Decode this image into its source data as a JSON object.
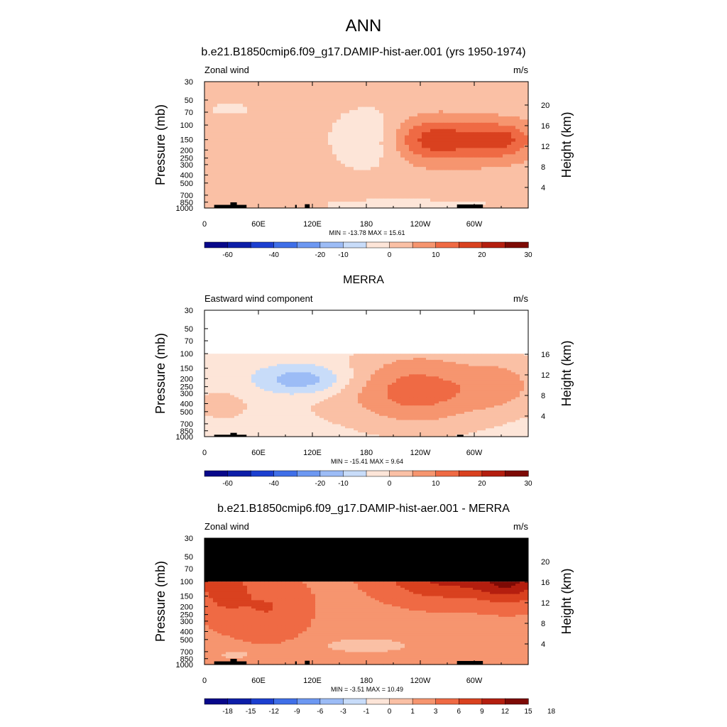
{
  "figure": {
    "title": "ANN",
    "colors": {
      "main": [
        "#08088a",
        "#0d1ea8",
        "#1c3fd0",
        "#3f6fe8",
        "#6d98f2",
        "#9cbcf6",
        "#c8dcf9",
        "#fde5d8",
        "#fac0a5",
        "#f6956f",
        "#ef6a44",
        "#d9411f",
        "#b41e0f",
        "#7d0a05"
      ],
      "diff": [
        "#08088a",
        "#0d1ea8",
        "#1c3fd0",
        "#3f6fe8",
        "#6d98f2",
        "#9cbcf6",
        "#c8dcf9",
        "#fde5d8",
        "#fac0a5",
        "#f6956f",
        "#ef6a44",
        "#d9411f",
        "#b41e0f",
        "#7d0a05"
      ],
      "topography": "#000000",
      "missing": "#000000"
    }
  },
  "chart_data": [
    {
      "type": "heatmap",
      "title": "b.e21.B1850cmip6.f09_g17.DAMIP-hist-aer.001 (yrs 1950-1974)",
      "left_label": "Zonal wind",
      "units": "m/s",
      "ylabel": "Pressure (mb)",
      "ylabel_right": "Height (km)",
      "xticks": [
        "0",
        "60E",
        "120E",
        "180",
        "120W",
        "60W"
      ],
      "yticks": [
        "30",
        "50",
        "70",
        "100",
        "150",
        "200",
        "250",
        "300",
        "400",
        "500",
        "700",
        "850",
        "1000"
      ],
      "right_ticks": [
        "20",
        "16",
        "12",
        "8",
        "4"
      ],
      "stats": "MIN = -13.78  MAX =  15.61",
      "colorbar_labels": [
        "-60",
        "-40",
        "-20",
        "-10",
        "0",
        "10",
        "20",
        "30"
      ],
      "colorbar_levels": [
        -70,
        -60,
        -50,
        -40,
        -30,
        -20,
        -10,
        -5,
        0,
        5,
        10,
        15,
        20,
        25,
        30
      ],
      "colorbar": "main",
      "xlim": [
        0,
        360
      ],
      "ylim": [
        1000,
        30
      ],
      "field": {
        "base": 2,
        "features": [
          {
            "x": 0.51,
            "y": 0.46,
            "w": 0.12,
            "h": 0.24,
            "v": -8
          },
          {
            "x": 0.72,
            "y": 0.46,
            "w": 0.15,
            "h": 0.16,
            "v": 14
          },
          {
            "x": 0.92,
            "y": 0.46,
            "w": 0.09,
            "h": 0.13,
            "v": 11
          },
          {
            "x": 0.82,
            "y": 0.5,
            "w": 0.36,
            "h": 0.28,
            "v": 3
          },
          {
            "x": 0.3,
            "y": 0.9,
            "w": 0.16,
            "h": 0.08,
            "v": 3
          },
          {
            "x": 0.58,
            "y": 0.97,
            "w": 0.32,
            "h": 0.04,
            "v": -5
          },
          {
            "x": 0.08,
            "y": 0.22,
            "w": 0.07,
            "h": 0.05,
            "v": -4
          },
          {
            "x": 0.83,
            "y": 0.22,
            "w": 0.05,
            "h": 0.03,
            "v": -3
          }
        ],
        "topography": [
          [
            0.03,
            0.13,
            0.975
          ],
          [
            0.08,
            0.1,
            0.955
          ],
          [
            0.28,
            0.285,
            0.975
          ],
          [
            0.31,
            0.325,
            0.97
          ],
          [
            0.78,
            0.86,
            0.972
          ]
        ]
      }
    },
    {
      "type": "heatmap",
      "title": "MERRA",
      "left_label": "Eastward wind component",
      "units": "m/s",
      "ylabel": "Pressure (mb)",
      "ylabel_right": "Height (km)",
      "xticks": [
        "0",
        "60E",
        "120E",
        "180",
        "120W",
        "60W"
      ],
      "yticks": [
        "30",
        "50",
        "70",
        "100",
        "150",
        "200",
        "250",
        "300",
        "400",
        "500",
        "700",
        "850",
        "1000"
      ],
      "right_ticks": [
        "16",
        "12",
        "8",
        "4"
      ],
      "stats": "MIN = -15.41  MAX =   9.64",
      "colorbar_labels": [
        "-60",
        "-40",
        "-20",
        "-10",
        "0",
        "10",
        "20",
        "30"
      ],
      "colorbar_levels": [
        -70,
        -60,
        -50,
        -40,
        -30,
        -20,
        -10,
        -5,
        0,
        5,
        10,
        15,
        20,
        25,
        30
      ],
      "colorbar": "main",
      "xlim": [
        0,
        360
      ],
      "ylim": [
        1000,
        30
      ],
      "data_top_mb": 100,
      "field": {
        "base": -2,
        "features": [
          {
            "x": 0.3,
            "y": 0.55,
            "w": 0.14,
            "h": 0.12,
            "v": -12
          },
          {
            "x": 0.66,
            "y": 0.6,
            "w": 0.2,
            "h": 0.3,
            "v": 11
          },
          {
            "x": 0.92,
            "y": 0.58,
            "w": 0.12,
            "h": 0.2,
            "v": 7
          },
          {
            "x": 0.62,
            "y": 0.7,
            "w": 0.35,
            "h": 0.22,
            "v": 4
          },
          {
            "x": 0.05,
            "y": 0.75,
            "w": 0.1,
            "h": 0.15,
            "v": 3
          }
        ],
        "topography": [
          [
            0.03,
            0.13,
            0.985
          ],
          [
            0.08,
            0.1,
            0.97
          ],
          [
            0.78,
            0.8,
            0.985
          ]
        ]
      }
    },
    {
      "type": "heatmap",
      "title": "b.e21.B1850cmip6.f09_g17.DAMIP-hist-aer.001 - MERRA",
      "left_label": "Zonal wind",
      "units": "m/s",
      "ylabel": "Pressure (mb)",
      "ylabel_right": "Height (km)",
      "xticks": [
        "0",
        "60E",
        "120E",
        "180",
        "120W",
        "60W"
      ],
      "yticks": [
        "30",
        "50",
        "70",
        "100",
        "150",
        "200",
        "250",
        "300",
        "400",
        "500",
        "700",
        "850",
        "1000"
      ],
      "right_ticks": [
        "20",
        "16",
        "12",
        "8",
        "4"
      ],
      "stats": "MIN =  -3.51  MAX =  10.49",
      "colorbar_labels": [
        "-18",
        "-15",
        "-12",
        "-9",
        "-6",
        "-3",
        "-1",
        "0",
        "1",
        "3",
        "6",
        "9",
        "12",
        "15",
        "18"
      ],
      "colorbar_levels": [
        -21,
        -18,
        -15,
        -12,
        -9,
        -6,
        -3,
        -1,
        0,
        1,
        3,
        6,
        9,
        12,
        15,
        18
      ],
      "colorbar": "diff",
      "xlim": [
        0,
        360
      ],
      "ylim": [
        1000,
        30
      ],
      "data_top_mb": 100,
      "field": {
        "base": 2,
        "features": [
          {
            "x": 0.05,
            "y": 0.3,
            "w": 0.08,
            "h": 0.3,
            "v": 6
          },
          {
            "x": 0.2,
            "y": 0.55,
            "w": 0.12,
            "h": 0.25,
            "v": 4
          },
          {
            "x": 0.75,
            "y": 0.3,
            "w": 0.2,
            "h": 0.2,
            "v": 8
          },
          {
            "x": 0.95,
            "y": 0.3,
            "w": 0.1,
            "h": 0.2,
            "v": 9
          },
          {
            "x": 0.33,
            "y": 0.05,
            "w": 0.08,
            "h": 0.06,
            "v": -2
          },
          {
            "x": 0.5,
            "y": 0.85,
            "w": 0.15,
            "h": 0.06,
            "v": -2
          },
          {
            "x": 0.1,
            "y": 0.92,
            "w": 0.06,
            "h": 0.04,
            "v": -2
          }
        ],
        "topography": [
          [
            0.03,
            0.13,
            0.975
          ],
          [
            0.08,
            0.1,
            0.955
          ],
          [
            0.28,
            0.285,
            0.975
          ],
          [
            0.31,
            0.325,
            0.97
          ],
          [
            0.78,
            0.86,
            0.972
          ]
        ]
      }
    }
  ]
}
